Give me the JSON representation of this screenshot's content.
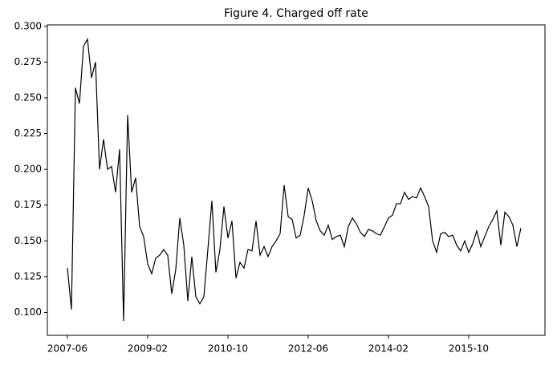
{
  "chart_data": {
    "type": "line",
    "title": "Figure 4. Charged off rate",
    "x": [
      "2007-06",
      "2007-07",
      "2007-08",
      "2007-09",
      "2007-10",
      "2007-11",
      "2007-12",
      "2008-01",
      "2008-02",
      "2008-03",
      "2008-04",
      "2008-05",
      "2008-06",
      "2008-07",
      "2008-08",
      "2008-09",
      "2008-10",
      "2008-11",
      "2008-12",
      "2009-01",
      "2009-02",
      "2009-03",
      "2009-04",
      "2009-05",
      "2009-06",
      "2009-07",
      "2009-08",
      "2009-09",
      "2009-10",
      "2009-11",
      "2009-12",
      "2010-01",
      "2010-02",
      "2010-03",
      "2010-04",
      "2010-05",
      "2010-06",
      "2010-07",
      "2010-08",
      "2010-09",
      "2010-10",
      "2010-11",
      "2010-12",
      "2011-01",
      "2011-02",
      "2011-03",
      "2011-04",
      "2011-05",
      "2011-06",
      "2011-07",
      "2011-08",
      "2011-09",
      "2011-10",
      "2011-11",
      "2011-12",
      "2012-01",
      "2012-02",
      "2012-03",
      "2012-04",
      "2012-05",
      "2012-06",
      "2012-07",
      "2012-08",
      "2012-09",
      "2012-10",
      "2012-11",
      "2012-12",
      "2013-01",
      "2013-02",
      "2013-03",
      "2013-04",
      "2013-05",
      "2013-06",
      "2013-07",
      "2013-08",
      "2013-09",
      "2013-10",
      "2013-11",
      "2013-12",
      "2014-01",
      "2014-02",
      "2014-03",
      "2014-04",
      "2014-05",
      "2014-06",
      "2014-07",
      "2014-08",
      "2014-09",
      "2014-10",
      "2014-11",
      "2014-12",
      "2015-01",
      "2015-02",
      "2015-03",
      "2015-04",
      "2015-05",
      "2015-06",
      "2015-07",
      "2015-08",
      "2015-09",
      "2015-10",
      "2015-11",
      "2015-12",
      "2016-01",
      "2016-02",
      "2016-03",
      "2016-04",
      "2016-05",
      "2016-06",
      "2016-07",
      "2016-08",
      "2016-09",
      "2016-10",
      "2016-11"
    ],
    "values": [
      0.131,
      0.102,
      0.257,
      0.246,
      0.286,
      0.291,
      0.264,
      0.275,
      0.2,
      0.221,
      0.2,
      0.202,
      0.184,
      0.214,
      0.094,
      0.238,
      0.184,
      0.194,
      0.16,
      0.153,
      0.134,
      0.127,
      0.138,
      0.14,
      0.144,
      0.14,
      0.113,
      0.13,
      0.166,
      0.147,
      0.108,
      0.139,
      0.111,
      0.106,
      0.111,
      0.144,
      0.178,
      0.128,
      0.144,
      0.174,
      0.152,
      0.164,
      0.124,
      0.135,
      0.131,
      0.144,
      0.143,
      0.164,
      0.14,
      0.146,
      0.139,
      0.146,
      0.15,
      0.155,
      0.189,
      0.167,
      0.165,
      0.152,
      0.154,
      0.168,
      0.187,
      0.178,
      0.164,
      0.157,
      0.154,
      0.161,
      0.151,
      0.153,
      0.154,
      0.146,
      0.16,
      0.166,
      0.162,
      0.156,
      0.153,
      0.158,
      0.157,
      0.155,
      0.154,
      0.16,
      0.166,
      0.168,
      0.176,
      0.176,
      0.184,
      0.179,
      0.181,
      0.18,
      0.187,
      0.181,
      0.174,
      0.15,
      0.142,
      0.155,
      0.156,
      0.153,
      0.154,
      0.147,
      0.143,
      0.15,
      0.142,
      0.148,
      0.157,
      0.146,
      0.153,
      0.16,
      0.165,
      0.171,
      0.147,
      0.17,
      0.167,
      0.161,
      0.146,
      0.159
    ],
    "color": "#000000",
    "xlim": [
      "2007-01",
      "2017-05"
    ],
    "xticks": [
      "2007-06",
      "2009-02",
      "2010-10",
      "2012-06",
      "2014-02",
      "2015-10"
    ],
    "ylim": [
      0.084,
      0.301
    ],
    "yticks": [
      {
        "value": 0.1,
        "label": "0.100"
      },
      0.125,
      {
        "value": 0.15,
        "label": "0.150"
      },
      0.175,
      {
        "value": 0.2,
        "label": "0.200"
      },
      0.225,
      {
        "value": 0.25,
        "label": "0.250"
      },
      0.275,
      {
        "value": 0.3,
        "label": "0.300"
      }
    ]
  }
}
